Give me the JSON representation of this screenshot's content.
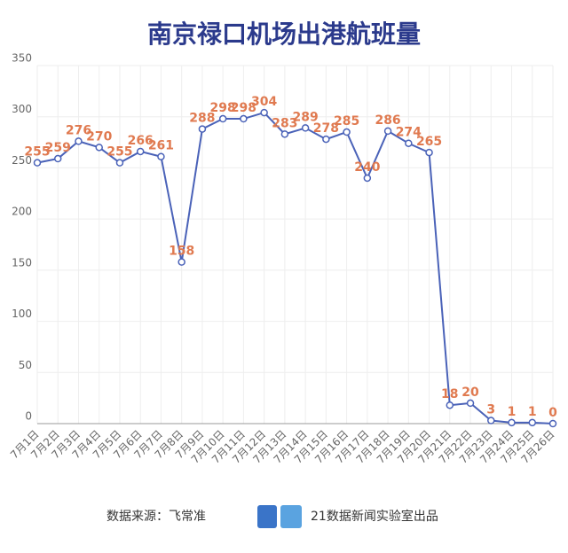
{
  "chart_data": {
    "type": "line",
    "title": "南京禄口机场出港航班量",
    "categories": [
      "7月1日",
      "7月2日",
      "7月3日",
      "7月4日",
      "7月5日",
      "7月6日",
      "7月7日",
      "7月8日",
      "7月9日",
      "7月10日",
      "7月11日",
      "7月12日",
      "7月13日",
      "7月14日",
      "7月15日",
      "7月16日",
      "7月17日",
      "7月18日",
      "7月19日",
      "7月20日",
      "7月21日",
      "7月22日",
      "7月23日",
      "7月24日",
      "7月25日",
      "7月26日"
    ],
    "values": [
      255,
      259,
      276,
      270,
      255,
      266,
      261,
      158,
      288,
      298,
      298,
      304,
      283,
      289,
      278,
      285,
      240,
      286,
      274,
      265,
      18,
      20,
      3,
      1,
      1,
      0
    ],
    "color": "#4a62b8",
    "label_color": "#e07a50",
    "ylim": [
      0,
      350
    ],
    "yticks": [
      0,
      50,
      100,
      150,
      200,
      250,
      300,
      350
    ],
    "grid": true,
    "source": "数据来源：飞常准",
    "credit": "21数据新闻实验室出品"
  }
}
